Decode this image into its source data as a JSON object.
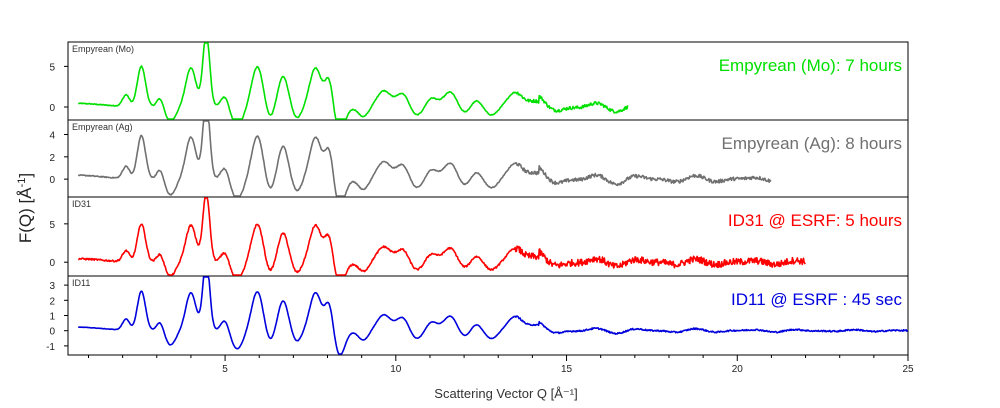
{
  "chart_data": {
    "type": "line",
    "title": "",
    "xlabel": "Scattering Vector Q [Å⁻¹]",
    "ylabel_main": "F(Q) [Å",
    "ylabel_sup": "-1",
    "ylabel_end": "]",
    "xlim": [
      0.4,
      25
    ],
    "xticks": [
      5,
      10,
      15,
      20,
      25
    ],
    "grid": false,
    "panels": [
      {
        "corner_label": "Empyrean (Mo)",
        "annotation": "Empyrean (Mo): 7 hours",
        "color": "#00e000",
        "ylim": [
          -1.6,
          8.0
        ],
        "yticks": [
          0,
          5
        ],
        "qmax": 16.8,
        "noise": 0.25,
        "decay": 0.55,
        "amp": 1.0
      },
      {
        "corner_label": "Empyrean (Ag)",
        "annotation": "Empyrean (Ag): 8 hours",
        "color": "#707070",
        "ylim": [
          -1.6,
          5.3
        ],
        "yticks": [
          0,
          2,
          4
        ],
        "qmax": 21.0,
        "noise": 0.2,
        "decay": 0.55,
        "amp": 0.78
      },
      {
        "corner_label": "ID31",
        "annotation": "ID31 @ ESRF: 5 hours",
        "color": "#ff0000",
        "ylim": [
          -1.8,
          8.5
        ],
        "yticks": [
          0,
          5
        ],
        "qmax": 22.0,
        "noise": 0.55,
        "decay": 0.55,
        "amp": 1.0
      },
      {
        "corner_label": "ID11",
        "annotation": "ID11 @ ESRF : 45 sec",
        "color": "#0000dd",
        "ylim": [
          -1.6,
          3.6
        ],
        "yticks": [
          -1,
          0,
          1,
          2,
          3
        ],
        "qmax": 25.0,
        "noise": 0.06,
        "decay": 0.35,
        "amp": 0.52
      }
    ],
    "peaks": [
      [
        2.1,
        1.5,
        0.1
      ],
      [
        2.55,
        5.0,
        0.12
      ],
      [
        3.1,
        1.2,
        0.1
      ],
      [
        4.0,
        4.8,
        0.15
      ],
      [
        4.45,
        9.0,
        0.1
      ],
      [
        5.0,
        1.5,
        0.12
      ],
      [
        5.95,
        5.0,
        0.17
      ],
      [
        6.7,
        3.8,
        0.15
      ],
      [
        7.65,
        4.8,
        0.17
      ],
      [
        8.05,
        3.6,
        0.12
      ],
      [
        9.65,
        2.0,
        0.2
      ],
      [
        10.2,
        1.7,
        0.18
      ],
      [
        11.05,
        1.1,
        0.16
      ],
      [
        11.6,
        1.9,
        0.2
      ],
      [
        12.35,
        0.9,
        0.16
      ],
      [
        13.5,
        1.8,
        0.22
      ],
      [
        14.1,
        0.7,
        0.2
      ]
    ],
    "dips": [
      [
        3.4,
        -1.8,
        0.15
      ],
      [
        5.35,
        -2.3,
        0.18
      ],
      [
        6.3,
        -1.6,
        0.14
      ],
      [
        7.1,
        -1.4,
        0.14
      ],
      [
        8.35,
        -3.2,
        0.16
      ],
      [
        9.05,
        -1.2,
        0.15
      ],
      [
        10.6,
        -1.1,
        0.18
      ],
      [
        12.0,
        -0.9,
        0.18
      ],
      [
        12.8,
        -1.0,
        0.18
      ]
    ]
  }
}
